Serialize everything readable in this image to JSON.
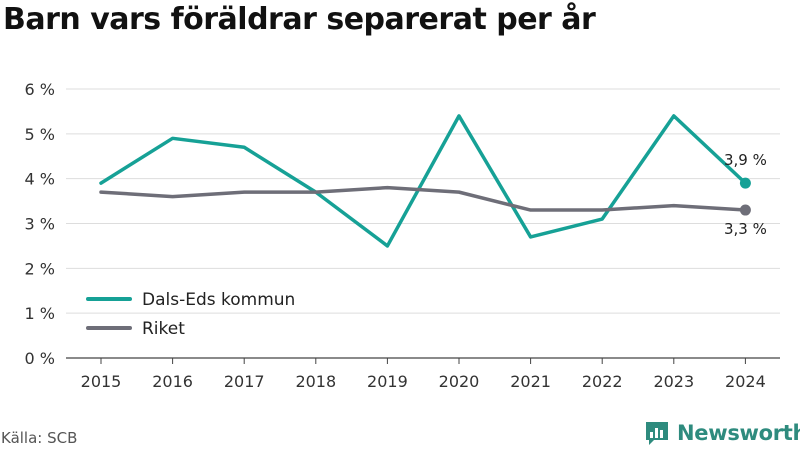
{
  "title": "Barn vars föräldrar separerat per år",
  "source": "Källa: SCB",
  "brand": {
    "name": "Newsworthy",
    "icon": "newsworthy-logo-icon"
  },
  "chart_data": {
    "type": "line",
    "title": "Barn vars föräldrar separerat per år",
    "xlabel": "",
    "ylabel": "",
    "x": [
      2015,
      2016,
      2017,
      2018,
      2019,
      2020,
      2021,
      2022,
      2023,
      2024
    ],
    "x_tick_labels": [
      "2015",
      "2016",
      "2017",
      "2018",
      "2019",
      "2020",
      "2021",
      "2022",
      "2023",
      "2024"
    ],
    "ylim": [
      0,
      6
    ],
    "y_ticks": [
      0,
      1,
      2,
      3,
      4,
      5,
      6
    ],
    "y_tick_labels": [
      "0 %",
      "1 %",
      "2 %",
      "3 %",
      "4 %",
      "5 %",
      "6 %"
    ],
    "grid": "horizontal",
    "legend_position": "bottom-left",
    "series": [
      {
        "name": "Dals-Eds kommun",
        "color": "#16a196",
        "values": [
          3.9,
          4.9,
          4.7,
          3.7,
          2.5,
          5.4,
          2.7,
          3.1,
          5.4,
          3.9
        ],
        "end_label": "3,9 %"
      },
      {
        "name": "Riket",
        "color": "#6e6e78",
        "values": [
          3.7,
          3.6,
          3.7,
          3.7,
          3.8,
          3.7,
          3.3,
          3.3,
          3.4,
          3.3
        ],
        "end_label": "3,3 %"
      }
    ]
  }
}
